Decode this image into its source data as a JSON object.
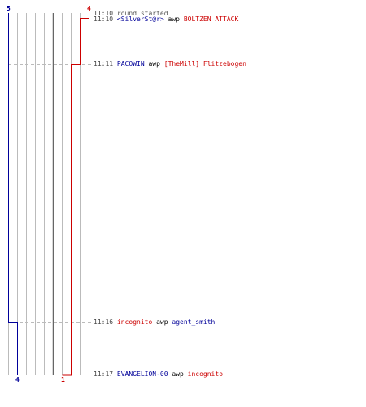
{
  "colors": {
    "team_blue": "#000099",
    "team_red": "#cc0000",
    "grid": "#bbbbbb",
    "grid_center": "#666666",
    "dash": "#bbbbbb",
    "text_grey": "#555555"
  },
  "score": {
    "blue_start": "5",
    "red_start": "4",
    "blue_end": "4",
    "red_end": "1"
  },
  "events": [
    {
      "time": "11:10",
      "text": "round started",
      "type": "info"
    },
    {
      "time": "11:10",
      "killer": "<SilverSt@r>",
      "killer_team": "blue",
      "weapon": "awp",
      "victim": "BOLTZEN ATTACK",
      "victim_team": "red"
    },
    {
      "time": "11:11",
      "killer": "PACOWIN",
      "killer_team": "blue",
      "weapon": "awp",
      "victim": "[TheMill] Flitzebogen",
      "victim_team": "red"
    },
    {
      "time": "11:16",
      "killer": "incognito",
      "killer_team": "red",
      "weapon": "awp",
      "victim": "agent_smith",
      "victim_team": "blue"
    },
    {
      "time": "11:17",
      "killer": "EVANGELION-00",
      "killer_team": "blue",
      "weapon": "awp",
      "victim": "incognito",
      "victim_team": "red"
    }
  ]
}
